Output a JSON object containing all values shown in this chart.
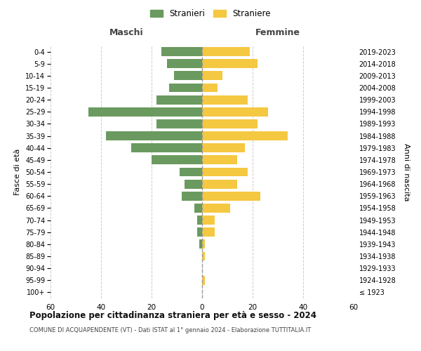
{
  "age_groups": [
    "100+",
    "95-99",
    "90-94",
    "85-89",
    "80-84",
    "75-79",
    "70-74",
    "65-69",
    "60-64",
    "55-59",
    "50-54",
    "45-49",
    "40-44",
    "35-39",
    "30-34",
    "25-29",
    "20-24",
    "15-19",
    "10-14",
    "5-9",
    "0-4"
  ],
  "birth_years": [
    "≤ 1923",
    "1924-1928",
    "1929-1933",
    "1934-1938",
    "1939-1943",
    "1944-1948",
    "1949-1953",
    "1954-1958",
    "1959-1963",
    "1964-1968",
    "1969-1973",
    "1974-1978",
    "1979-1983",
    "1984-1988",
    "1989-1993",
    "1994-1998",
    "1999-2003",
    "2004-2008",
    "2009-2013",
    "2014-2018",
    "2019-2023"
  ],
  "maschi": [
    0,
    0,
    0,
    0,
    1,
    2,
    2,
    3,
    8,
    7,
    9,
    20,
    28,
    38,
    18,
    45,
    18,
    13,
    11,
    14,
    16
  ],
  "femmine": [
    0,
    1,
    0,
    1,
    1,
    5,
    5,
    11,
    23,
    14,
    18,
    14,
    17,
    34,
    22,
    26,
    18,
    6,
    8,
    22,
    19
  ],
  "color_maschi": "#6a9a5f",
  "color_femmine": "#f5c842",
  "title": "Popolazione per cittadinanza straniera per età e sesso - 2024",
  "subtitle": "COMUNE DI ACQUAPENDENTE (VT) - Dati ISTAT al 1° gennaio 2024 - Elaborazione TUTTITALIA.IT",
  "xlabel_left": "Maschi",
  "xlabel_right": "Femmine",
  "ylabel_left": "Fasce di età",
  "ylabel_right": "Anni di nascita",
  "legend_maschi": "Stranieri",
  "legend_femmine": "Straniere",
  "xlim": 60,
  "background_color": "#ffffff",
  "grid_color": "#cccccc"
}
